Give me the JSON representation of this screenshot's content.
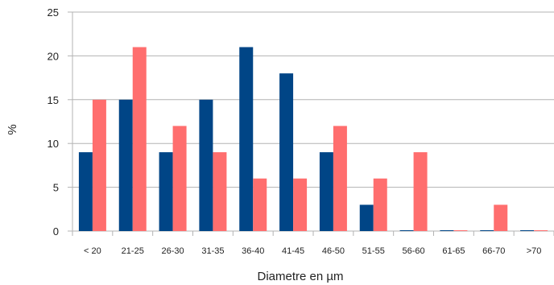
{
  "chart_data": {
    "type": "bar",
    "categories": [
      "< 20",
      "21-25",
      "26-30",
      "31-35",
      "36-40",
      "41-45",
      "46-50",
      "51-55",
      "56-60",
      "61-65",
      "66-70",
      ">70"
    ],
    "series": [
      {
        "color": "#004586",
        "values": [
          9,
          15,
          9,
          15,
          21,
          18,
          9,
          3,
          0,
          0,
          0,
          0
        ]
      },
      {
        "color": "#ff6e6e",
        "values": [
          15,
          21,
          12,
          9,
          6,
          6,
          12,
          6,
          9,
          0,
          3,
          0
        ]
      }
    ],
    "xlabel": "Diametre en µm",
    "ylabel": "%",
    "ylim": [
      0,
      25
    ],
    "yticks": [
      0,
      5,
      10,
      15,
      20,
      25
    ],
    "grid": true,
    "legend": "none"
  }
}
